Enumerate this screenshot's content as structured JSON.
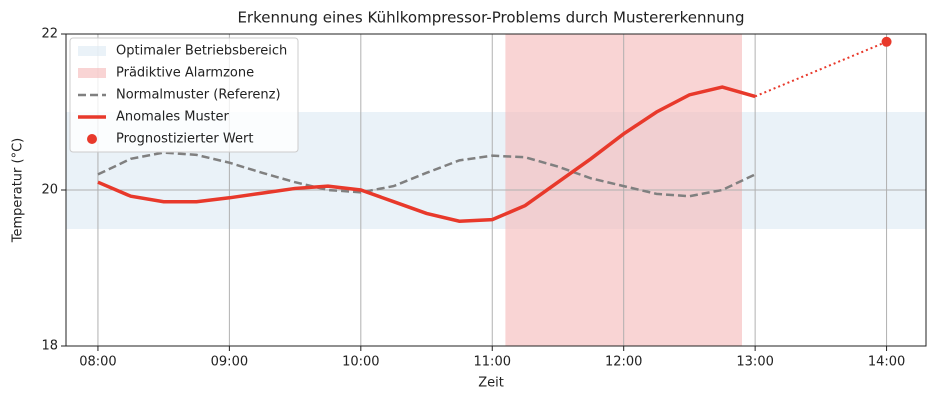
{
  "chart_data": {
    "type": "line",
    "title": "Erkennung eines Kühlkompressor-Problems durch Mustererkennung",
    "xlabel": "Zeit",
    "ylabel": "Temperatur (°C)",
    "xlim": [
      7.757,
      14.3
    ],
    "ylim": [
      18,
      22
    ],
    "xticks": [
      {
        "value": 8,
        "label": "08:00"
      },
      {
        "value": 9,
        "label": "09:00"
      },
      {
        "value": 10,
        "label": "10:00"
      },
      {
        "value": 11,
        "label": "11:00"
      },
      {
        "value": 12,
        "label": "12:00"
      },
      {
        "value": 13,
        "label": "13:00"
      },
      {
        "value": 14,
        "label": "14:00"
      }
    ],
    "yticks": [
      18,
      20,
      22
    ],
    "grid": true,
    "legend": "upper left",
    "bands": [
      {
        "name": "Optimaler Betriebsbereich",
        "color": "#dce9f3",
        "y": [
          19.5,
          21
        ]
      },
      {
        "name": "Prädiktive Alarmzone",
        "color": "#f5b8b8",
        "x": [
          11.1,
          12.9
        ]
      }
    ],
    "series": [
      {
        "name": "Normalmuster (Referenz)",
        "color": "#808080",
        "style": "dashed",
        "x": [
          8,
          8.25,
          8.5,
          8.75,
          9,
          9.25,
          9.5,
          9.75,
          10,
          10.25,
          10.5,
          10.75,
          11,
          11.25,
          11.5,
          11.75,
          12,
          12.25,
          12.5,
          12.75,
          13
        ],
        "values": [
          20.2,
          20.4,
          20.48,
          20.45,
          20.35,
          20.22,
          20.1,
          20.0,
          19.97,
          20.05,
          20.22,
          20.38,
          20.44,
          20.42,
          20.3,
          20.15,
          20.05,
          19.95,
          19.92,
          20.0,
          20.2
        ]
      },
      {
        "name": "Anomales Muster",
        "color": "#e8392b",
        "style": "solid",
        "x": [
          8,
          8.25,
          8.5,
          8.75,
          9,
          9.25,
          9.5,
          9.75,
          10,
          10.25,
          10.5,
          10.75,
          11,
          11.25,
          11.5,
          11.75,
          12,
          12.25,
          12.5,
          12.75,
          13
        ],
        "values": [
          20.1,
          19.92,
          19.85,
          19.85,
          19.9,
          19.96,
          20.02,
          20.05,
          20.0,
          19.85,
          19.7,
          19.6,
          19.62,
          19.8,
          20.1,
          20.4,
          20.72,
          21.0,
          21.22,
          21.32,
          21.2
        ]
      },
      {
        "name": "Prognostizierter Wert",
        "color": "#e8392b",
        "style": "dotted",
        "marker": true,
        "x": [
          13,
          14
        ],
        "values": [
          21.2,
          21.9
        ]
      }
    ]
  }
}
